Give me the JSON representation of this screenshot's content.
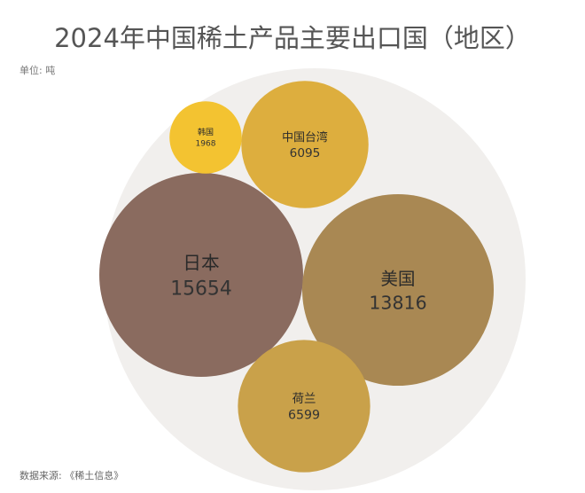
{
  "chart_data": {
    "type": "bubble",
    "title": "2024年中国稀土产品主要出口国（地区）",
    "subtitle": "单位: 吨",
    "source": "数据来源: 《稀土信息》",
    "categories": [
      "日本",
      "美国",
      "荷兰",
      "中国台湾",
      "韩国"
    ],
    "values": [
      15654,
      13816,
      6599,
      6095,
      1968
    ],
    "colors": [
      "#8a6b5f",
      "#a98853",
      "#c9a14a",
      "#ddae3e",
      "#f3c331"
    ]
  }
}
